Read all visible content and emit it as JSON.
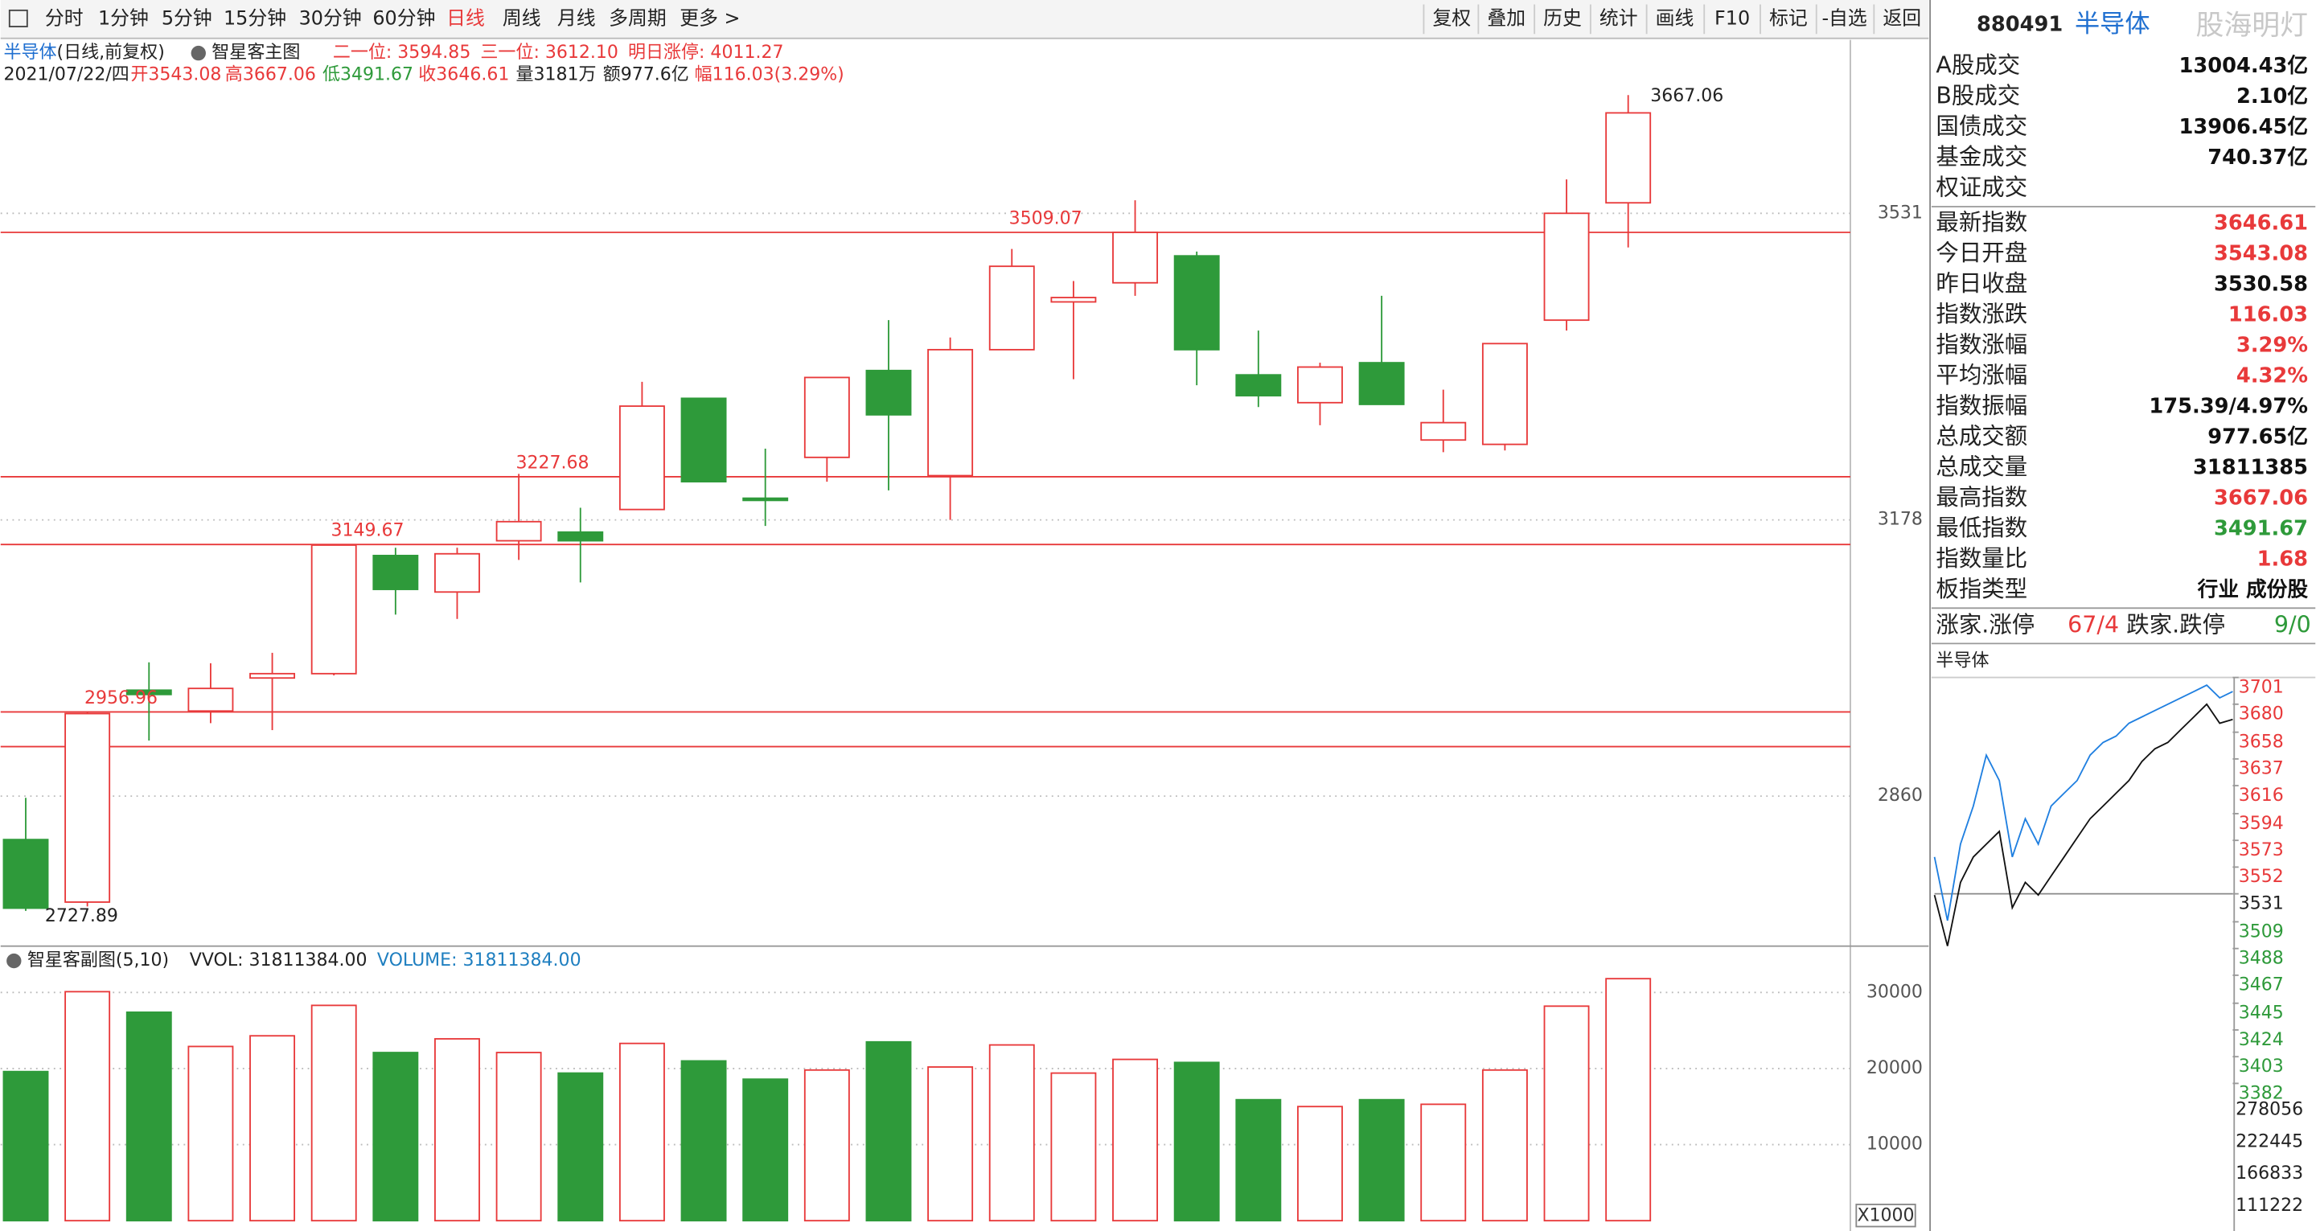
{
  "toolbar": {
    "periods": [
      "分时",
      "1分钟",
      "5分钟",
      "15分钟",
      "30分钟",
      "60分钟",
      "日线",
      "周线",
      "月线",
      "多周期",
      "更多 >"
    ],
    "active": 6,
    "tools": [
      "复权",
      "叠加",
      "历史",
      "统计",
      "画线",
      "F10",
      "标记",
      "-自选",
      "返回"
    ]
  },
  "header": {
    "name": "半导体",
    "mode": "(日线,前复权)",
    "indicator": "智星客主图",
    "levels": [
      "二一位: 3594.85",
      "三一位: 3612.10",
      "明日涨停: 4011.27"
    ],
    "date": "2021/07/22/四",
    "open": "开3543.08",
    "high": "高3667.06",
    "low": "低3491.67",
    "close": "收3646.61",
    "volume": "量3181万",
    "amount": "额977.6亿",
    "change": "幅116.03(3.29%)"
  },
  "main_chart": {
    "type": "candlestick",
    "ylim": [
      2689,
      3729
    ],
    "yticks": [
      2860,
      3178,
      3531
    ],
    "up_color": "#e8393a",
    "down_color": "#2e9a3a",
    "candles": [
      {
        "open": 2810,
        "high": 2858,
        "low": 2727.89,
        "close": 2731
      },
      {
        "open": 2738,
        "high": 2956.96,
        "low": 2733,
        "close": 2955
      },
      {
        "open": 2982,
        "high": 3014,
        "low": 2924,
        "close": 2977
      },
      {
        "open": 2958,
        "high": 3013,
        "low": 2944,
        "close": 2984
      },
      {
        "open": 2996,
        "high": 3025,
        "low": 2936,
        "close": 3001
      },
      {
        "open": 3001,
        "high": 3149.67,
        "low": 2999,
        "close": 3149
      },
      {
        "open": 3137,
        "high": 3146,
        "low": 3069,
        "close": 3098
      },
      {
        "open": 3095,
        "high": 3146,
        "low": 3064,
        "close": 3139
      },
      {
        "open": 3154,
        "high": 3231,
        "low": 3132,
        "close": 3176
      },
      {
        "open": 3164,
        "high": 3192,
        "low": 3106,
        "close": 3154
      },
      {
        "open": 3190,
        "high": 3337,
        "low": 3190,
        "close": 3309
      },
      {
        "open": 3318,
        "high": 3318,
        "low": 3222,
        "close": 3222
      },
      {
        "open": 3203,
        "high": 3260,
        "low": 3171,
        "close": 3201
      },
      {
        "open": 3250,
        "high": 3342,
        "low": 3222,
        "close": 3342
      },
      {
        "open": 3350,
        "high": 3408,
        "low": 3212,
        "close": 3299
      },
      {
        "open": 3229,
        "high": 3388,
        "low": 3178,
        "close": 3374
      },
      {
        "open": 3374,
        "high": 3490,
        "low": 3374,
        "close": 3470
      },
      {
        "open": 3429,
        "high": 3453,
        "low": 3340,
        "close": 3434
      },
      {
        "open": 3451,
        "high": 3546,
        "low": 3436,
        "close": 3509.07
      },
      {
        "open": 3482,
        "high": 3487,
        "low": 3333,
        "close": 3374
      },
      {
        "open": 3345,
        "high": 3396,
        "low": 3308,
        "close": 3321
      },
      {
        "open": 3313,
        "high": 3359,
        "low": 3287,
        "close": 3354
      },
      {
        "open": 3359,
        "high": 3436,
        "low": 3311,
        "close": 3311
      },
      {
        "open": 3270,
        "high": 3328,
        "low": 3256,
        "close": 3290
      },
      {
        "open": 3265,
        "high": 3381,
        "low": 3258,
        "close": 3381
      },
      {
        "open": 3408,
        "high": 3570,
        "low": 3396,
        "close": 3531
      },
      {
        "open": 3543.08,
        "high": 3667.06,
        "low": 3491.67,
        "close": 3646.61
      }
    ],
    "level_lines": [
      3509.07,
      3227.68,
      3149.67,
      2956.96,
      2917
    ],
    "labeled_levels": 4,
    "max_label": 3667.06,
    "min_label": 2727.89
  },
  "volume_chart": {
    "type": "bar",
    "title": "智星客副图(5,10)",
    "vvol": "VVOL: 31811384.00",
    "vol": "VOLUME: 31811384.00",
    "unit": "X1000",
    "ylim": [
      0,
      35700
    ],
    "yticks": [
      10000,
      20000,
      30000
    ],
    "values": [
      19600,
      30100,
      27400,
      22900,
      24300,
      28300,
      22100,
      23900,
      22100,
      19400,
      23300,
      21000,
      18600,
      19800,
      23500,
      20200,
      23100,
      19400,
      21200,
      20800,
      15900,
      15000,
      15900,
      15300,
      19800,
      28200,
      31811
    ]
  },
  "panel": {
    "code": "880491",
    "name": "半导体",
    "watermark": "股海明灯",
    "rows": [
      {
        "label": "A股成交",
        "value": "13004.43亿",
        "color": "#111"
      },
      {
        "label": "B股成交",
        "value": "2.10亿",
        "color": "#111"
      },
      {
        "label": "国债成交",
        "value": "13906.45亿",
        "color": "#111"
      },
      {
        "label": "基金成交",
        "value": "740.37亿",
        "color": "#111"
      },
      {
        "label": "权证成交"
      },
      {
        "label": "最新指数",
        "value": "3646.61",
        "color": "#e8393a"
      },
      {
        "label": "今日开盘",
        "value": "3543.08",
        "color": "#e8393a"
      },
      {
        "label": "昨日收盘",
        "value": "3530.58",
        "color": "#111"
      },
      {
        "label": "指数涨跌",
        "value": "116.03",
        "color": "#e8393a"
      },
      {
        "label": "指数涨幅",
        "value": "3.29%",
        "color": "#e8393a"
      },
      {
        "label": "平均涨幅",
        "value": "4.32%",
        "color": "#e8393a"
      },
      {
        "label": "指数振幅",
        "value": "175.39/4.97%",
        "color": "#111"
      },
      {
        "label": "总成交额",
        "value": "977.65亿",
        "color": "#111"
      },
      {
        "label": "总成交量",
        "value": "31811385",
        "color": "#111"
      },
      {
        "label": "最高指数",
        "value": "3667.06",
        "color": "#e8393a"
      },
      {
        "label": "最低指数",
        "value": "3491.67",
        "color": "#2e9a3a"
      },
      {
        "label": "指数量比",
        "value": "1.68",
        "color": "#e8393a"
      },
      {
        "label": "板指类型",
        "value": "行业 成份股",
        "color": "#111"
      }
    ],
    "breadth": {
      "up_label": "涨家.涨停",
      "up": "67/4",
      "down_label": "跌家.跌停",
      "down": "9/0"
    }
  },
  "mini_chart": {
    "type": "line",
    "title": "半导体",
    "ylim": [
      3382,
      3701
    ],
    "yticks": [
      3701,
      3680,
      3658,
      3637,
      3616,
      3594,
      3573,
      3552,
      3531,
      3509,
      3488,
      3467,
      3445,
      3424,
      3403,
      3382
    ],
    "vticks": [
      278056,
      222445,
      166833,
      111222
    ],
    "series": [
      {
        "color": "#1f7fe0",
        "values": [
          3560,
          3510,
          3570,
          3600,
          3640,
          3620,
          3560,
          3590,
          3570,
          3600,
          3610,
          3620,
          3640,
          3650,
          3655,
          3665,
          3670,
          3675,
          3680,
          3685,
          3690,
          3695,
          3685,
          3690
        ]
      },
      {
        "color": "#111111",
        "values": [
          3530,
          3490,
          3540,
          3560,
          3570,
          3580,
          3520,
          3540,
          3530,
          3545,
          3560,
          3575,
          3590,
          3600,
          3610,
          3620,
          3635,
          3645,
          3650,
          3660,
          3670,
          3680,
          3665,
          3668
        ]
      }
    ]
  }
}
